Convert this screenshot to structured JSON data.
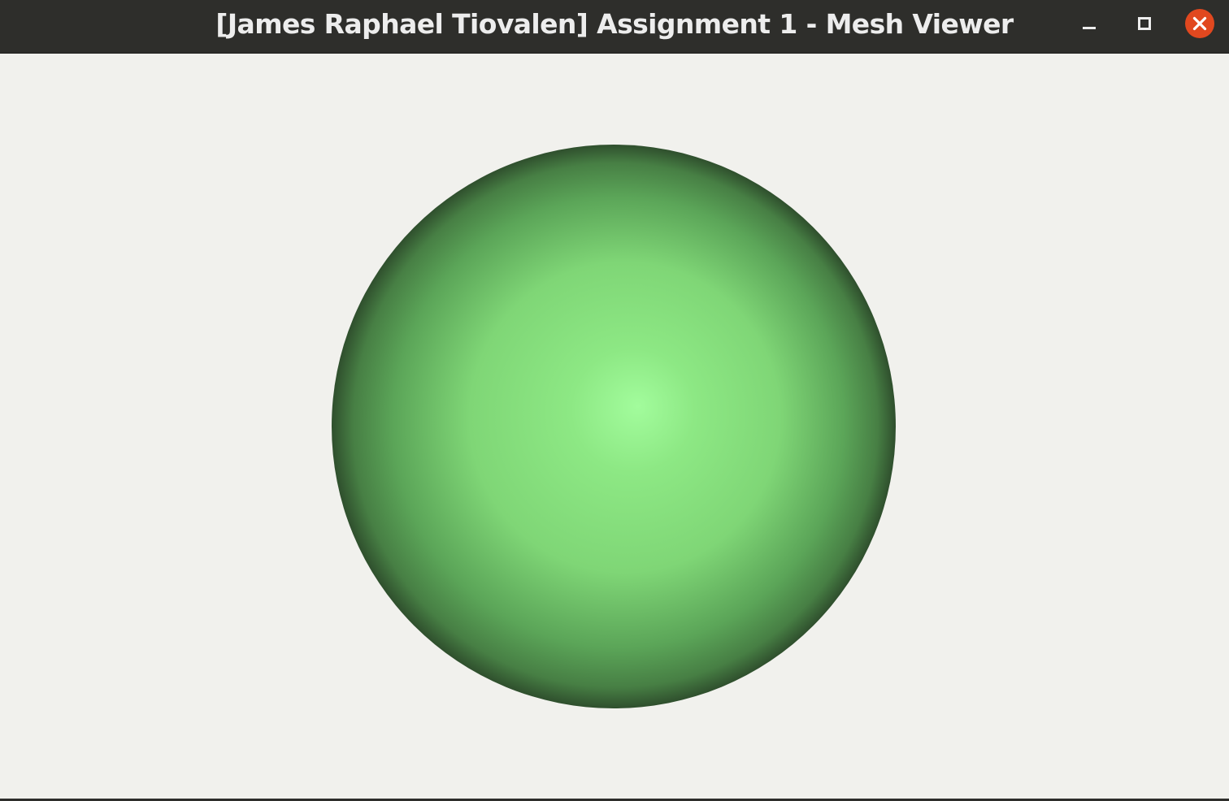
{
  "window": {
    "title": "[James Raphael Tiovalen] Assignment 1 - Mesh Viewer",
    "controls": {
      "minimize_icon": "minimize-icon",
      "maximize_icon": "maximize-icon",
      "close_icon": "close-icon"
    },
    "colors": {
      "titlebar": "#2e2e2b",
      "title_text": "#ededed",
      "close_button": "#e1481f"
    }
  },
  "viewport": {
    "background": "#f1f1ed",
    "mesh": {
      "shape": "sphere",
      "highlight_color": "#a2fc9c",
      "mid_color": "#7fd676",
      "shadow_color": "#2f4f2d"
    }
  }
}
